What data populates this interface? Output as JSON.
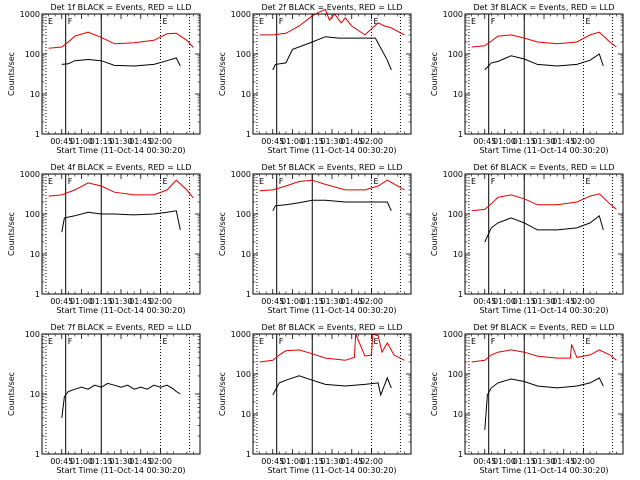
{
  "chart_data": [
    {
      "type": "line",
      "title": "Det 1f BLACK = Events, RED = LLD",
      "xlabel": "Start Time (11-Oct-14 00:30:20)",
      "ylabel": "Counts/sec",
      "yscale": "log",
      "ylim": [
        1,
        1000
      ],
      "xtick_labels": [
        "00:45",
        "01:00",
        "01:15",
        "01:30",
        "01:45",
        "02:00"
      ],
      "ytick_labels": [
        "1",
        "10",
        "100",
        "1000"
      ],
      "markers": [
        {
          "label": "E",
          "style": "dotted"
        },
        {
          "label": "F",
          "style": "solid"
        },
        {
          "label": "",
          "style": "solid"
        },
        {
          "label": "E",
          "style": "dotted"
        },
        {
          "label": "",
          "style": "dotted"
        }
      ],
      "series": [
        {
          "color": "#000000",
          "x": [
            0,
            5,
            10,
            20,
            30,
            40,
            55,
            70,
            80,
            87,
            90
          ],
          "y": [
            55,
            57,
            68,
            73,
            68,
            52,
            50,
            55,
            68,
            80,
            50
          ]
        },
        {
          "color": "#e00000",
          "x": [
            -10,
            0,
            5,
            10,
            20,
            30,
            40,
            55,
            70,
            80,
            87,
            95,
            100
          ],
          "y": [
            140,
            150,
            200,
            280,
            350,
            260,
            180,
            190,
            220,
            320,
            330,
            220,
            145
          ]
        }
      ]
    },
    {
      "type": "line",
      "title": "Det 2f BLACK = Events, RED = LLD",
      "xlabel": "Start Time (11-Oct-14 00:30:20)",
      "ylabel": "Counts/sec",
      "yscale": "log",
      "ylim": [
        1,
        1000
      ],
      "xtick_labels": [
        "00:45",
        "01:00",
        "01:15",
        "01:30",
        "01:45",
        "02:00"
      ],
      "ytick_labels": [
        "1",
        "10",
        "100",
        "1000"
      ],
      "markers": [
        {
          "label": "E",
          "style": "dotted"
        },
        {
          "label": "F",
          "style": "solid"
        },
        {
          "label": "",
          "style": "solid"
        },
        {
          "label": "E",
          "style": "dotted"
        },
        {
          "label": "",
          "style": "dotted"
        }
      ],
      "series": [
        {
          "color": "#000000",
          "x": [
            0,
            2,
            10,
            15,
            30,
            40,
            50,
            70,
            78,
            87,
            90
          ],
          "y": [
            40,
            55,
            60,
            130,
            200,
            270,
            250,
            250,
            250,
            70,
            40
          ]
        },
        {
          "color": "#e00000",
          "x": [
            -10,
            0,
            10,
            20,
            30,
            35,
            40,
            43,
            47,
            52,
            55,
            60,
            70,
            80,
            85,
            90,
            100
          ],
          "y": [
            300,
            300,
            330,
            500,
            900,
            1100,
            1300,
            700,
            1000,
            600,
            800,
            500,
            300,
            600,
            500,
            450,
            300
          ]
        }
      ]
    },
    {
      "type": "line",
      "title": "Det 3f BLACK = Events, RED = LLD",
      "xlabel": "Start Time (11-Oct-14 00:30:20)",
      "ylabel": "Counts/sec",
      "yscale": "log",
      "ylim": [
        1,
        1000
      ],
      "xtick_labels": [
        "00:45",
        "01:00",
        "01:15",
        "01:30",
        "01:45",
        "02:00"
      ],
      "ytick_labels": [
        "1",
        "10",
        "100",
        "1000"
      ],
      "markers": [
        {
          "label": "E",
          "style": "dotted"
        },
        {
          "label": "F",
          "style": "solid"
        },
        {
          "label": "",
          "style": "solid"
        },
        {
          "label": "E",
          "style": "dotted"
        },
        {
          "label": "",
          "style": "dotted"
        }
      ],
      "series": [
        {
          "color": "#000000",
          "x": [
            0,
            5,
            10,
            20,
            30,
            40,
            55,
            70,
            80,
            87,
            90
          ],
          "y": [
            40,
            60,
            65,
            90,
            75,
            55,
            50,
            55,
            70,
            100,
            50
          ]
        },
        {
          "color": "#e00000",
          "x": [
            -10,
            0,
            5,
            10,
            20,
            30,
            40,
            55,
            70,
            80,
            87,
            95,
            100
          ],
          "y": [
            150,
            160,
            210,
            280,
            300,
            250,
            200,
            180,
            200,
            300,
            350,
            200,
            150
          ]
        }
      ]
    },
    {
      "type": "line",
      "title": "Det 4f BLACK = Events, RED = LLD",
      "xlabel": "Start Time (11-Oct-14 00:30:20)",
      "ylabel": "Counts/sec",
      "yscale": "log",
      "ylim": [
        1,
        1000
      ],
      "xtick_labels": [
        "00:45",
        "01:00",
        "01:15",
        "01:30",
        "01:45",
        "02:00"
      ],
      "ytick_labels": [
        "1",
        "10",
        "100",
        "1000"
      ],
      "markers": [
        {
          "label": "E",
          "style": "dotted"
        },
        {
          "label": "F",
          "style": "solid"
        },
        {
          "label": "",
          "style": "solid"
        },
        {
          "label": "E",
          "style": "dotted"
        },
        {
          "label": "",
          "style": "dotted"
        }
      ],
      "series": [
        {
          "color": "#000000",
          "x": [
            0,
            2,
            10,
            20,
            30,
            40,
            55,
            70,
            80,
            87,
            90
          ],
          "y": [
            35,
            80,
            90,
            110,
            100,
            100,
            95,
            100,
            110,
            120,
            40
          ]
        },
        {
          "color": "#e00000",
          "x": [
            -10,
            0,
            10,
            20,
            30,
            40,
            55,
            70,
            80,
            87,
            95,
            100
          ],
          "y": [
            280,
            300,
            400,
            600,
            500,
            350,
            300,
            300,
            400,
            700,
            400,
            250
          ]
        }
      ]
    },
    {
      "type": "line",
      "title": "Det 5f BLACK = Events, RED = LLD",
      "xlabel": "Start Time (11-Oct-14 00:30:20)",
      "ylabel": "Counts/sec",
      "yscale": "log",
      "ylim": [
        1,
        1000
      ],
      "xtick_labels": [
        "00:45",
        "01:00",
        "01:15",
        "01:30",
        "01:45",
        "02:00"
      ],
      "ytick_labels": [
        "1",
        "10",
        "100",
        "1000"
      ],
      "markers": [
        {
          "label": "E",
          "style": "dotted"
        },
        {
          "label": "F",
          "style": "solid"
        },
        {
          "label": "",
          "style": "solid"
        },
        {
          "label": "E",
          "style": "dotted"
        },
        {
          "label": "",
          "style": "dotted"
        }
      ],
      "series": [
        {
          "color": "#000000",
          "x": [
            0,
            2,
            10,
            20,
            30,
            40,
            55,
            70,
            80,
            87,
            90
          ],
          "y": [
            120,
            160,
            170,
            190,
            220,
            220,
            200,
            200,
            200,
            200,
            120
          ]
        },
        {
          "color": "#e00000",
          "x": [
            -10,
            0,
            10,
            20,
            30,
            40,
            55,
            70,
            80,
            87,
            95,
            100
          ],
          "y": [
            380,
            400,
            500,
            650,
            700,
            550,
            400,
            400,
            500,
            700,
            500,
            400
          ]
        }
      ]
    },
    {
      "type": "line",
      "title": "Det 6f BLACK = Events, RED = LLD",
      "xlabel": "Start Time (11-Oct-14 00:30:20)",
      "ylabel": "Counts/sec",
      "yscale": "log",
      "ylim": [
        1,
        1000
      ],
      "xtick_labels": [
        "00:45",
        "01:00",
        "01:15",
        "01:30",
        "01:45",
        "02:00"
      ],
      "ytick_labels": [
        "1",
        "10",
        "100",
        "1000"
      ],
      "markers": [
        {
          "label": "E",
          "style": "dotted"
        },
        {
          "label": "F",
          "style": "solid"
        },
        {
          "label": "",
          "style": "solid"
        },
        {
          "label": "E",
          "style": "dotted"
        },
        {
          "label": "",
          "style": "dotted"
        }
      ],
      "series": [
        {
          "color": "#000000",
          "x": [
            0,
            5,
            10,
            20,
            30,
            40,
            55,
            70,
            80,
            87,
            90
          ],
          "y": [
            20,
            45,
            60,
            80,
            60,
            40,
            40,
            45,
            60,
            90,
            40
          ]
        },
        {
          "color": "#e00000",
          "x": [
            -10,
            0,
            5,
            10,
            20,
            30,
            40,
            55,
            70,
            80,
            87,
            95,
            100
          ],
          "y": [
            120,
            130,
            180,
            260,
            300,
            240,
            170,
            170,
            200,
            280,
            320,
            180,
            130
          ]
        }
      ]
    },
    {
      "type": "line",
      "title": "Det 7f BLACK = Events, RED = LLD",
      "xlabel": "Start Time (11-Oct-14 00:30:20)",
      "ylabel": "Counts/sec",
      "yscale": "log",
      "ylim": [
        1,
        100
      ],
      "xtick_labels": [
        "00:45",
        "01:00",
        "01:15",
        "01:30",
        "01:45",
        "02:00"
      ],
      "ytick_labels": [
        "1",
        "10",
        "100"
      ],
      "markers": [
        {
          "label": "E",
          "style": "dotted"
        },
        {
          "label": "F",
          "style": "solid"
        },
        {
          "label": "",
          "style": "solid"
        },
        {
          "label": "E",
          "style": "dotted"
        },
        {
          "label": "",
          "style": "dotted"
        }
      ],
      "series": [
        {
          "color": "#000000",
          "x": [
            0,
            2,
            5,
            10,
            15,
            20,
            25,
            30,
            35,
            40,
            45,
            50,
            55,
            60,
            65,
            70,
            75,
            80,
            85,
            87,
            90
          ],
          "y": [
            4,
            9,
            11,
            12,
            13,
            12,
            14,
            13,
            15,
            14,
            13,
            14,
            12,
            13,
            12,
            14,
            13,
            14,
            12,
            11,
            10
          ]
        }
      ]
    },
    {
      "type": "line",
      "title": "Det 8f BLACK = Events, RED = LLD",
      "xlabel": "Start Time (11-Oct-14 00:30:20)",
      "ylabel": "Counts/sec",
      "yscale": "log",
      "ylim": [
        1,
        1000
      ],
      "xtick_labels": [
        "00:45",
        "01:00",
        "01:15",
        "01:30",
        "01:45",
        "02:00"
      ],
      "ytick_labels": [
        "1",
        "10",
        "100",
        "1000"
      ],
      "markers": [
        {
          "label": "E",
          "style": "dotted"
        },
        {
          "label": "F",
          "style": "solid"
        },
        {
          "label": "",
          "style": "solid"
        },
        {
          "label": "E",
          "style": "dotted"
        },
        {
          "label": "",
          "style": "dotted"
        }
      ],
      "series": [
        {
          "color": "#000000",
          "x": [
            0,
            5,
            10,
            20,
            30,
            40,
            55,
            70,
            80,
            82,
            87,
            90
          ],
          "y": [
            30,
            60,
            70,
            90,
            70,
            55,
            50,
            55,
            60,
            30,
            80,
            45
          ]
        },
        {
          "color": "#e00000",
          "x": [
            -10,
            0,
            5,
            10,
            20,
            30,
            40,
            55,
            62,
            63,
            70,
            75,
            76,
            80,
            83,
            87,
            92,
            100
          ],
          "y": [
            200,
            220,
            300,
            380,
            400,
            320,
            250,
            220,
            260,
            1000,
            280,
            300,
            1000,
            900,
            350,
            600,
            300,
            220
          ]
        }
      ]
    },
    {
      "type": "line",
      "title": "Det 9f BLACK = Events, RED = LLD",
      "xlabel": "Start Time (11-Oct-14 00:30:20)",
      "ylabel": "Counts/sec",
      "yscale": "log",
      "ylim": [
        1,
        1000
      ],
      "xtick_labels": [
        "00:45",
        "01:00",
        "01:15",
        "01:30",
        "01:45",
        "02:00"
      ],
      "ytick_labels": [
        "1",
        "10",
        "100",
        "1000"
      ],
      "markers": [
        {
          "label": "E",
          "style": "dotted"
        },
        {
          "label": "F",
          "style": "solid"
        },
        {
          "label": "",
          "style": "solid"
        },
        {
          "label": "E",
          "style": "dotted"
        },
        {
          "label": "",
          "style": "dotted"
        }
      ],
      "series": [
        {
          "color": "#000000",
          "x": [
            0,
            2,
            5,
            10,
            20,
            30,
            40,
            55,
            70,
            80,
            87,
            90
          ],
          "y": [
            4,
            30,
            45,
            60,
            75,
            65,
            50,
            45,
            50,
            60,
            80,
            50
          ]
        },
        {
          "color": "#e00000",
          "x": [
            -10,
            0,
            5,
            10,
            20,
            30,
            40,
            55,
            65,
            66,
            70,
            80,
            87,
            95,
            100
          ],
          "y": [
            200,
            220,
            300,
            350,
            400,
            350,
            280,
            250,
            250,
            550,
            260,
            300,
            400,
            300,
            220
          ]
        }
      ]
    }
  ]
}
